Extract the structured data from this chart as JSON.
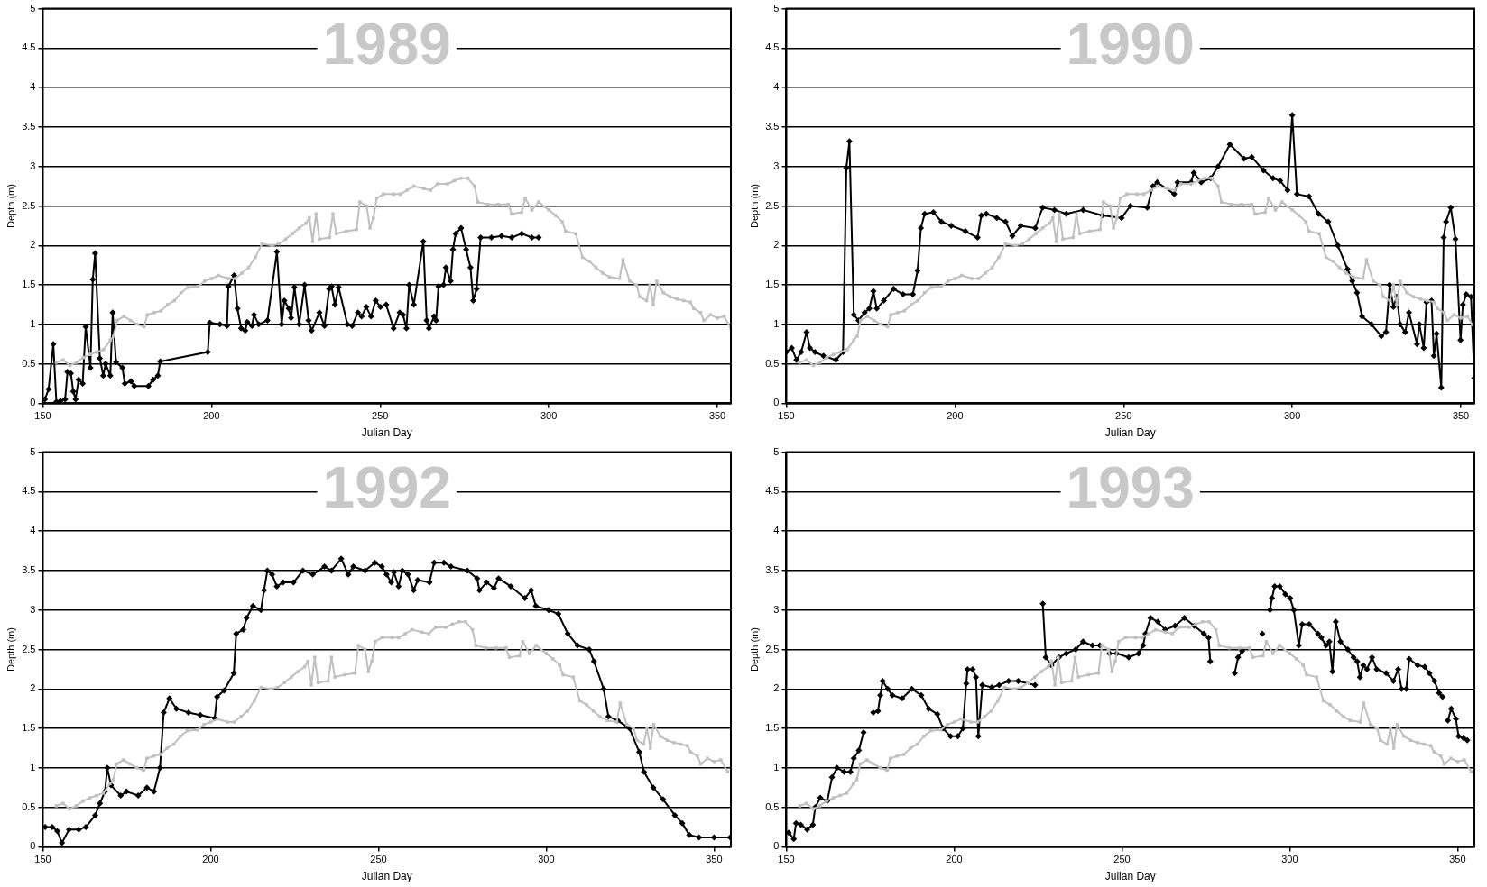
{
  "chart_data": [
    {
      "type": "line",
      "title": "1989",
      "xlabel": "Julian Day",
      "ylabel": "Depth (m)",
      "xlim": [
        150,
        354
      ],
      "xticks": [
        150,
        200,
        250,
        300,
        350
      ],
      "ylim": [
        0,
        5
      ],
      "yticks": [
        0,
        0.5,
        1,
        1.5,
        2,
        2.5,
        3,
        3.5,
        4,
        4.5,
        5
      ],
      "grid": "y",
      "legend": false,
      "line_style": "solid",
      "series": [
        {
          "color": "#c0c0c0",
          "marker": "square",
          "x": [
            154,
            156,
            158,
            160,
            162,
            164,
            166,
            168,
            170,
            171,
            172,
            174,
            176,
            178,
            180,
            181,
            183,
            185,
            187,
            189,
            191,
            193,
            196,
            198,
            200,
            202,
            205,
            207,
            209,
            211,
            213,
            215,
            218,
            220,
            222,
            224,
            226,
            228,
            229,
            230,
            231,
            232,
            235,
            236,
            237,
            240,
            243,
            244,
            246,
            247,
            248,
            249,
            251,
            254,
            256,
            258,
            260,
            263,
            265,
            267,
            270,
            272,
            274,
            276,
            278,
            279,
            282,
            285,
            288,
            289,
            292,
            293,
            295,
            297,
            300,
            302,
            304,
            305,
            308,
            310,
            312,
            314,
            316,
            318,
            321,
            322,
            324,
            326,
            327,
            329,
            330,
            331,
            332,
            334,
            336,
            338,
            340,
            342,
            343,
            345,
            346,
            348,
            350,
            352,
            354
          ],
          "values": [
            0.52,
            0.55,
            0.48,
            0.52,
            0.58,
            0.62,
            0.65,
            0.68,
            0.8,
            0.85,
            1.05,
            1.1,
            1.05,
            1,
            0.97,
            1.12,
            1.15,
            1.17,
            1.25,
            1.3,
            1.4,
            1.47,
            1.48,
            1.55,
            1.58,
            1.62,
            1.58,
            1.58,
            1.65,
            1.72,
            1.85,
            2.02,
            2,
            2.02,
            2.08,
            2.15,
            2.22,
            2.28,
            2.35,
            2.05,
            2.4,
            2.08,
            2.1,
            2.4,
            2.15,
            2.18,
            2.2,
            2.55,
            2.5,
            2.22,
            2.35,
            2.6,
            2.65,
            2.65,
            2.65,
            2.7,
            2.75,
            2.72,
            2.7,
            2.78,
            2.78,
            2.82,
            2.85,
            2.85,
            2.75,
            2.55,
            2.52,
            2.52,
            2.52,
            2.4,
            2.42,
            2.6,
            2.45,
            2.55,
            2.45,
            2.38,
            2.3,
            2.18,
            2.15,
            1.85,
            1.8,
            1.72,
            1.65,
            1.6,
            1.58,
            1.82,
            1.55,
            1.5,
            1.35,
            1.3,
            1.5,
            1.25,
            1.55,
            1.4,
            1.35,
            1.32,
            1.3,
            1.28,
            1.2,
            1.15,
            1.05,
            1.12,
            1.08,
            1.1,
            0.95
          ]
        },
        {
          "color": "#000000",
          "marker": "diamond",
          "x": [
            150.6,
            151.7,
            153.1,
            154,
            155.2,
            156.6,
            157.3,
            158.3,
            159,
            159.7,
            160.6,
            161.8,
            162.7,
            164.1,
            164.8,
            165.5,
            166.9,
            167.9,
            168.6,
            170,
            170.7,
            171.7,
            173.6,
            174.3,
            176.1,
            177.1,
            181.3,
            182.7,
            184.1,
            184.8,
            198.9,
            199.5,
            202.5,
            204.6,
            205,
            206.7,
            207.7,
            208.8,
            210,
            210.6,
            212,
            212.6,
            214,
            216.6,
            219.4,
            220.8,
            221.6,
            222.9,
            223.6,
            224.6,
            226,
            227.6,
            228.8,
            229.7,
            232,
            233.5,
            234.9,
            235.6,
            236.6,
            237.7,
            240.3,
            241.7,
            243.4,
            244.5,
            245.9,
            247.3,
            248.7,
            250.1,
            251.8,
            254,
            255.8,
            256.8,
            257.8,
            258.6,
            260,
            262.8,
            263.8,
            264.5,
            266,
            266.6,
            267.3,
            268.8,
            269.5,
            270.9,
            271.6,
            272.4,
            274,
            275.5,
            276.8,
            277.6,
            278.6,
            279.8,
            283,
            286,
            289,
            292,
            295,
            297
          ],
          "values": [
            0.05,
            0.18,
            0.75,
            0.02,
            0.03,
            0.05,
            0.4,
            0.38,
            0.15,
            0.05,
            0.3,
            0.25,
            0.97,
            0.45,
            1.57,
            1.9,
            0.57,
            0.35,
            0.5,
            0.35,
            1.15,
            0.52,
            0.45,
            0.25,
            0.28,
            0.22,
            0.22,
            0.3,
            0.35,
            0.53,
            0.65,
            1.02,
            1,
            0.98,
            1.48,
            1.62,
            1.2,
            0.95,
            0.92,
            1.03,
            0.98,
            1.12,
            1,
            1.05,
            1.92,
            1,
            1.3,
            1.2,
            1.08,
            1.47,
            1,
            1.5,
            1.05,
            0.92,
            1.15,
            0.98,
            1.45,
            1.48,
            1.25,
            1.47,
            1,
            0.98,
            1.15,
            1.1,
            1.22,
            1.1,
            1.3,
            1.22,
            1.25,
            0.95,
            1.15,
            1.12,
            0.95,
            1.5,
            1.25,
            2.05,
            1.05,
            0.95,
            1.1,
            1.05,
            1.48,
            1.5,
            1.72,
            1.55,
            1.95,
            2.15,
            2.22,
            1.95,
            1.72,
            1.3,
            1.45,
            2.1,
            2.1,
            2.12,
            2.1,
            2.15,
            2.1,
            2.1
          ]
        }
      ]
    },
    {
      "type": "line",
      "title": "1990",
      "xlabel": "Julian Day",
      "ylabel": "Depth (m)",
      "xlim": [
        150,
        354
      ],
      "xticks": [
        150,
        200,
        250,
        300,
        350
      ],
      "ylim": [
        0,
        5
      ],
      "yticks": [
        0,
        0.5,
        1,
        1.5,
        2,
        2.5,
        3,
        3.5,
        4,
        4.5,
        5
      ],
      "grid": "y",
      "legend": false,
      "line_style": "solid",
      "series": [
        {
          "color": "#c0c0c0",
          "marker": "square",
          "x": [
            154,
            156,
            158,
            160,
            162,
            164,
            166,
            168,
            170,
            171,
            172,
            174,
            176,
            178,
            180,
            181,
            183,
            185,
            187,
            189,
            191,
            193,
            196,
            198,
            200,
            202,
            205,
            207,
            209,
            211,
            213,
            215,
            218,
            220,
            222,
            224,
            226,
            228,
            229,
            230,
            231,
            232,
            235,
            236,
            237,
            240,
            243,
            244,
            246,
            247,
            248,
            249,
            251,
            254,
            256,
            258,
            260,
            263,
            265,
            267,
            270,
            272,
            274,
            276,
            278,
            279,
            282,
            285,
            288,
            289,
            292,
            293,
            295,
            297,
            300,
            302,
            304,
            305,
            308,
            310,
            312,
            314,
            316,
            318,
            321,
            322,
            324,
            326,
            327,
            329,
            330,
            331,
            332,
            334,
            336,
            338,
            340,
            342,
            343,
            345,
            346,
            348,
            350,
            352,
            354
          ],
          "values": [
            0.52,
            0.55,
            0.48,
            0.52,
            0.58,
            0.62,
            0.65,
            0.68,
            0.8,
            0.85,
            1.05,
            1.1,
            1.05,
            1,
            0.97,
            1.12,
            1.15,
            1.17,
            1.25,
            1.3,
            1.4,
            1.47,
            1.48,
            1.55,
            1.58,
            1.62,
            1.58,
            1.58,
            1.65,
            1.72,
            1.85,
            2.02,
            2,
            2.02,
            2.08,
            2.15,
            2.22,
            2.28,
            2.35,
            2.05,
            2.4,
            2.08,
            2.1,
            2.4,
            2.15,
            2.18,
            2.2,
            2.55,
            2.5,
            2.22,
            2.35,
            2.6,
            2.65,
            2.65,
            2.65,
            2.7,
            2.75,
            2.72,
            2.7,
            2.78,
            2.78,
            2.82,
            2.85,
            2.85,
            2.75,
            2.55,
            2.52,
            2.52,
            2.52,
            2.4,
            2.42,
            2.6,
            2.45,
            2.55,
            2.45,
            2.38,
            2.3,
            2.18,
            2.15,
            1.85,
            1.8,
            1.72,
            1.65,
            1.6,
            1.58,
            1.82,
            1.55,
            1.5,
            1.35,
            1.3,
            1.5,
            1.25,
            1.55,
            1.4,
            1.35,
            1.32,
            1.3,
            1.28,
            1.2,
            1.15,
            1.05,
            1.12,
            1.08,
            1.1,
            0.95
          ]
        },
        {
          "color": "#000000",
          "marker": "diamond",
          "x": [
            150,
            151.6,
            153,
            154.4,
            156,
            157,
            158.5,
            161,
            164.7,
            166.8,
            167.8,
            168.7,
            170,
            171.4,
            173.2,
            174.6,
            175.8,
            176.8,
            178.9,
            181.8,
            184.6,
            187.5,
            188.9,
            189.9,
            191,
            193.6,
            196,
            198.9,
            203.1,
            206.7,
            207.8,
            209.3,
            212.4,
            215,
            217,
            219.5,
            223.8,
            226,
            229.5,
            233,
            238,
            243.7,
            249.4,
            252,
            257,
            258.7,
            260,
            265,
            266,
            270,
            270.8,
            273,
            275.8,
            278,
            281.5,
            285.7,
            288,
            291.5,
            294.3,
            296.4,
            298.6,
            300,
            301.4,
            305,
            307.8,
            310.7,
            313.5,
            316.4,
            317.8,
            319.2,
            320.7,
            323.5,
            326.4,
            327.8,
            328.9,
            330,
            331,
            332,
            333.5,
            334.6,
            337,
            337.7,
            339,
            339.8,
            341.3,
            342,
            342.8,
            344.2,
            344.9,
            345.6,
            347,
            348.4,
            349.9,
            350.6,
            351.6,
            353,
            354
          ],
          "values": [
            0.65,
            0.7,
            0.55,
            0.65,
            0.9,
            0.7,
            0.65,
            0.6,
            0.55,
            0.65,
            2.98,
            3.32,
            1.12,
            1.05,
            1.15,
            1.2,
            1.42,
            1.2,
            1.3,
            1.45,
            1.38,
            1.38,
            1.68,
            2.22,
            2.4,
            2.42,
            2.3,
            2.25,
            2.18,
            2.1,
            2.38,
            2.4,
            2.35,
            2.3,
            2.12,
            2.25,
            2.22,
            2.48,
            2.45,
            2.4,
            2.45,
            2.38,
            2.35,
            2.5,
            2.48,
            2.75,
            2.8,
            2.65,
            2.8,
            2.8,
            2.92,
            2.8,
            2.85,
            3,
            3.28,
            3.1,
            3.12,
            2.95,
            2.85,
            2.82,
            2.7,
            3.65,
            2.65,
            2.62,
            2.4,
            2.3,
            2,
            1.7,
            1.55,
            1.4,
            1.1,
            1,
            0.85,
            0.9,
            1.5,
            1.22,
            1.35,
            1,
            0.9,
            1.15,
            0.75,
            1,
            0.7,
            1.28,
            1.3,
            0.6,
            0.88,
            0.2,
            2.1,
            2.3,
            2.48,
            2.08,
            0.8,
            1.25,
            1.38,
            1.35,
            0.32
          ]
        }
      ]
    },
    {
      "type": "line",
      "title": "1992",
      "xlabel": "Julian Day",
      "ylabel": "Depth (m)",
      "xlim": [
        150,
        355
      ],
      "xticks": [
        150,
        200,
        250,
        300,
        350
      ],
      "ylim": [
        0,
        5
      ],
      "yticks": [
        0,
        0.5,
        1,
        1.5,
        2,
        2.5,
        3,
        3.5,
        4,
        4.5,
        5
      ],
      "grid": "y",
      "legend": false,
      "line_style": "solid",
      "series": [
        {
          "color": "#c0c0c0",
          "marker": "square",
          "x": [
            154,
            156,
            158,
            160,
            162,
            164,
            166,
            168,
            170,
            171,
            172,
            174,
            176,
            178,
            180,
            181,
            183,
            185,
            187,
            189,
            191,
            193,
            196,
            198,
            200,
            202,
            205,
            207,
            209,
            211,
            213,
            215,
            218,
            220,
            222,
            224,
            226,
            228,
            229,
            230,
            231,
            232,
            235,
            236,
            237,
            240,
            243,
            244,
            246,
            247,
            248,
            249,
            251,
            254,
            256,
            258,
            260,
            263,
            265,
            267,
            270,
            272,
            274,
            276,
            278,
            279,
            282,
            285,
            288,
            289,
            292,
            293,
            295,
            297,
            300,
            302,
            304,
            305,
            308,
            310,
            312,
            314,
            316,
            318,
            321,
            322,
            324,
            326,
            327,
            329,
            330,
            331,
            332,
            334,
            336,
            338,
            340,
            342,
            343,
            345,
            346,
            348,
            350,
            352,
            354
          ],
          "values": [
            0.52,
            0.55,
            0.48,
            0.52,
            0.58,
            0.62,
            0.65,
            0.68,
            0.8,
            0.85,
            1.05,
            1.1,
            1.05,
            1,
            0.97,
            1.12,
            1.15,
            1.17,
            1.25,
            1.3,
            1.4,
            1.47,
            1.48,
            1.55,
            1.58,
            1.62,
            1.58,
            1.58,
            1.65,
            1.72,
            1.85,
            2.02,
            2,
            2.02,
            2.08,
            2.15,
            2.22,
            2.28,
            2.35,
            2.05,
            2.4,
            2.08,
            2.1,
            2.4,
            2.15,
            2.18,
            2.2,
            2.55,
            2.5,
            2.22,
            2.35,
            2.6,
            2.65,
            2.65,
            2.65,
            2.7,
            2.75,
            2.72,
            2.7,
            2.78,
            2.78,
            2.82,
            2.85,
            2.85,
            2.75,
            2.55,
            2.52,
            2.52,
            2.52,
            2.4,
            2.42,
            2.6,
            2.45,
            2.55,
            2.45,
            2.38,
            2.3,
            2.18,
            2.15,
            1.85,
            1.8,
            1.72,
            1.65,
            1.6,
            1.58,
            1.82,
            1.55,
            1.5,
            1.35,
            1.3,
            1.5,
            1.25,
            1.55,
            1.4,
            1.35,
            1.32,
            1.3,
            1.28,
            1.2,
            1.15,
            1.05,
            1.12,
            1.08,
            1.1,
            0.95
          ]
        },
        {
          "color": "#000000",
          "marker": "diamond",
          "x": [
            150.7,
            152.8,
            154.3,
            155.7,
            157.8,
            160.7,
            162.8,
            165.6,
            167,
            168.5,
            169.2,
            170.3,
            173.2,
            174.9,
            178.4,
            181,
            183.1,
            184.9,
            186,
            187.7,
            189.8,
            193.4,
            196.9,
            201.2,
            201.9,
            204,
            206.9,
            207.6,
            209.7,
            210.7,
            212.6,
            215,
            215.9,
            216.9,
            218.3,
            219.7,
            221.6,
            224.7,
            227.5,
            230.4,
            233.9,
            236,
            238.9,
            241,
            242.5,
            246,
            248.9,
            251,
            252.4,
            253.8,
            254.6,
            256,
            257.1,
            258.8,
            260.5,
            261.7,
            265.2,
            266.6,
            269.5,
            271.6,
            276.5,
            279.4,
            280.1,
            282.2,
            284.4,
            285.8,
            289.4,
            293.6,
            295.5,
            296.9,
            300.7,
            303.6,
            306.4,
            309.3,
            312.8,
            314.2,
            317.1,
            318.5,
            321.3,
            324.8,
            327.7,
            329.1,
            331.9,
            334.8,
            338.3,
            340.5,
            342.6,
            345.5,
            350,
            354.8
          ],
          "values": [
            0.25,
            0.25,
            0.2,
            0.05,
            0.22,
            0.22,
            0.25,
            0.4,
            0.55,
            0.7,
            1,
            0.78,
            0.65,
            0.7,
            0.65,
            0.75,
            0.7,
            1,
            1.7,
            1.88,
            1.75,
            1.7,
            1.67,
            1.63,
            1.9,
            1.98,
            2.2,
            2.7,
            2.75,
            2.9,
            3.05,
            3,
            3.25,
            3.5,
            3.45,
            3.3,
            3.35,
            3.35,
            3.5,
            3.45,
            3.55,
            3.5,
            3.65,
            3.45,
            3.55,
            3.5,
            3.6,
            3.55,
            3.45,
            3.35,
            3.48,
            3.3,
            3.5,
            3.45,
            3.25,
            3.38,
            3.35,
            3.6,
            3.6,
            3.55,
            3.5,
            3.4,
            3.25,
            3.35,
            3.28,
            3.4,
            3.3,
            3.15,
            3.25,
            3.05,
            3,
            2.95,
            2.7,
            2.55,
            2.5,
            2.35,
            2,
            1.65,
            1.6,
            1.5,
            1.2,
            0.95,
            0.75,
            0.6,
            0.4,
            0.3,
            0.15,
            0.12,
            0.12,
            0.12
          ]
        }
      ]
    },
    {
      "type": "line",
      "title": "1993",
      "xlabel": "Julian Day",
      "ylabel": "Depth (m)",
      "xlim": [
        150,
        355
      ],
      "xticks": [
        150,
        200,
        250,
        300,
        350
      ],
      "ylim": [
        0,
        5
      ],
      "yticks": [
        0,
        0.5,
        1,
        1.5,
        2,
        2.5,
        3,
        3.5,
        4,
        4.5,
        5
      ],
      "grid": "y",
      "legend": false,
      "line_style": "solid",
      "series": [
        {
          "color": "#c0c0c0",
          "marker": "square",
          "x": [
            154,
            156,
            158,
            160,
            162,
            164,
            166,
            168,
            170,
            171,
            172,
            174,
            176,
            178,
            180,
            181,
            183,
            185,
            187,
            189,
            191,
            193,
            196,
            198,
            200,
            202,
            205,
            207,
            209,
            211,
            213,
            215,
            218,
            220,
            222,
            224,
            226,
            228,
            229,
            230,
            231,
            232,
            235,
            236,
            237,
            240,
            243,
            244,
            246,
            247,
            248,
            249,
            251,
            254,
            256,
            258,
            260,
            263,
            265,
            267,
            270,
            272,
            274,
            276,
            278,
            279,
            282,
            285,
            288,
            289,
            292,
            293,
            295,
            297,
            300,
            302,
            304,
            305,
            308,
            310,
            312,
            314,
            316,
            318,
            321,
            322,
            324,
            326,
            327,
            329,
            330,
            331,
            332,
            334,
            336,
            338,
            340,
            342,
            343,
            345,
            346,
            348,
            350,
            352,
            354
          ],
          "values": [
            0.52,
            0.55,
            0.48,
            0.52,
            0.58,
            0.62,
            0.65,
            0.68,
            0.8,
            0.85,
            1.05,
            1.1,
            1.05,
            1,
            0.97,
            1.12,
            1.15,
            1.17,
            1.25,
            1.3,
            1.4,
            1.47,
            1.48,
            1.55,
            1.58,
            1.62,
            1.58,
            1.58,
            1.65,
            1.72,
            1.85,
            2.02,
            2,
            2.02,
            2.08,
            2.15,
            2.22,
            2.28,
            2.35,
            2.05,
            2.4,
            2.08,
            2.1,
            2.4,
            2.15,
            2.18,
            2.2,
            2.55,
            2.5,
            2.22,
            2.35,
            2.6,
            2.65,
            2.65,
            2.65,
            2.7,
            2.75,
            2.72,
            2.7,
            2.78,
            2.78,
            2.82,
            2.85,
            2.85,
            2.75,
            2.55,
            2.52,
            2.52,
            2.52,
            2.4,
            2.42,
            2.6,
            2.45,
            2.55,
            2.45,
            2.38,
            2.3,
            2.18,
            2.15,
            1.85,
            1.8,
            1.72,
            1.65,
            1.6,
            1.58,
            1.82,
            1.55,
            1.5,
            1.35,
            1.3,
            1.5,
            1.25,
            1.55,
            1.4,
            1.35,
            1.32,
            1.3,
            1.28,
            1.2,
            1.15,
            1.05,
            1.12,
            1.08,
            1.1,
            0.95
          ]
        },
        {
          "color": "#000000",
          "marker": "diamond",
          "x": [
            150.7,
            152.2,
            152.9,
            154.3,
            156.2,
            157.9,
            158.6,
            160.1,
            162.2,
            163.6,
            165.1,
            167.2,
            169.1,
            170.1,
            171.6,
            173,
            174.5,
            175.9,
            177.3,
            178,
            178.7,
            180.2,
            181.6,
            184.5,
            187.4,
            190.2,
            192.4,
            195,
            196.7,
            198.9,
            201.1,
            202.6,
            203.6,
            204,
            205.5,
            206.5,
            207.2,
            208.4,
            211.2,
            213.4,
            216.2,
            219.1,
            224.1,
            225.3,
            226.4,
            227.3,
            229,
            231.2,
            233.4,
            236.2,
            238.4,
            241.2,
            243.4,
            244.9,
            246.3,
            248.4,
            252,
            254.9,
            256.3,
            257,
            258.5,
            260.7,
            262.9,
            265.8,
            268.6,
            271.5,
            274.4,
            275.8,
            276.3,
            280,
            283.6,
            284.6,
            285.8,
            289,
            291.8,
            293,
            294.1,
            294.7,
            295.5,
            297,
            298.7,
            300.1,
            301.2,
            302.7,
            303.7,
            305.8,
            308.4,
            309.4,
            310.8,
            311.8,
            312.7,
            313.7,
            315.1,
            317.3,
            319,
            320.1,
            320.9,
            321.9,
            323,
            324.5,
            325.9,
            328.7,
            330.9,
            332.3,
            333.3,
            334.7,
            335.6,
            338.1,
            340.2,
            341.6,
            343.1,
            344.5,
            345.5,
            346.3,
            347.1,
            348.1,
            349.5,
            350.3,
            351.7,
            352.9
          ],
          "values": [
            0.18,
            0.1,
            0.3,
            0.28,
            0.22,
            0.28,
            0.5,
            0.62,
            0.58,
            0.88,
            1,
            0.95,
            0.95,
            1.12,
            1.22,
            1.45,
            null,
            1.7,
            1.72,
            1.92,
            2.1,
            2,
            1.92,
            1.88,
            2,
            1.92,
            1.75,
            1.68,
            1.5,
            1.4,
            1.4,
            1.5,
            2.07,
            2.25,
            2.25,
            2.15,
            1.4,
            2.05,
            2.02,
            2.05,
            2.1,
            2.1,
            2.05,
            null,
            3.08,
            2.4,
            2.3,
            2.4,
            2.45,
            2.5,
            2.6,
            2.55,
            2.55,
            null,
            2.45,
            2.45,
            2.4,
            2.45,
            2.55,
            2.7,
            2.9,
            2.85,
            2.75,
            2.8,
            2.9,
            2.8,
            2.7,
            2.65,
            2.35,
            null,
            2.2,
            2.4,
            2.48,
            null,
            2.7,
            null,
            3,
            3.15,
            3.3,
            3.3,
            3.2,
            3.15,
            3,
            2.55,
            2.82,
            2.82,
            2.7,
            2.65,
            2.55,
            2.6,
            2.22,
            2.85,
            2.6,
            2.5,
            2.4,
            2.35,
            2.15,
            2.3,
            2.25,
            2.4,
            2.25,
            2.2,
            2.1,
            2.25,
            2,
            2,
            2.38,
            2.3,
            2.28,
            2.2,
            2.1,
            1.95,
            1.9,
            null,
            1.6,
            1.75,
            1.62,
            1.4,
            1.38,
            1.35
          ]
        }
      ]
    }
  ]
}
